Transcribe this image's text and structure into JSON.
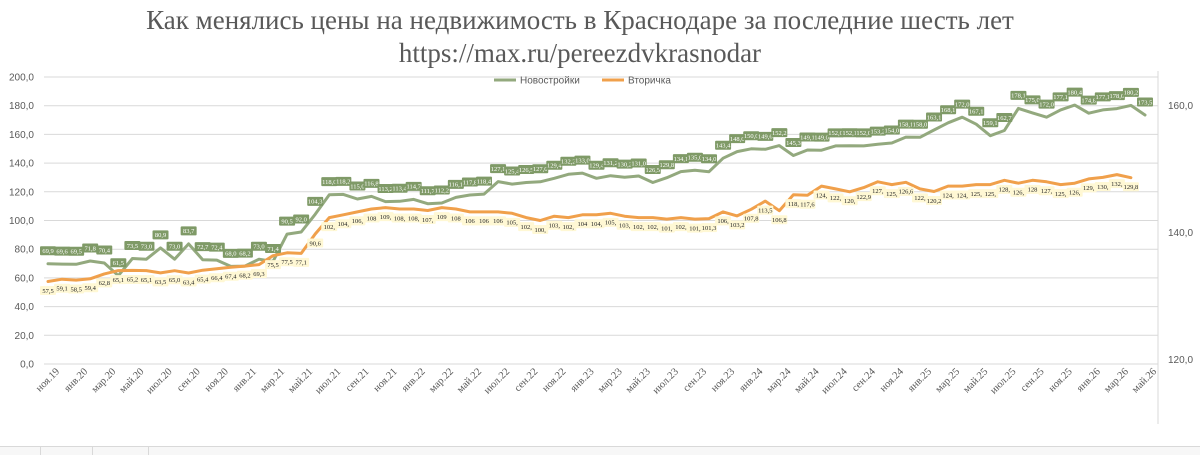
{
  "title": {
    "line1": "Как менялись цены на недвижимость в Краснодаре за последние шесть лет",
    "line2": "https://max.ru/pereezdvkrasnodar"
  },
  "chart_data": {
    "type": "line",
    "title": "Как менялись цены на недвижимость в Краснодаре за последние шесть лет",
    "subtitle": "https://max.ru/pereezdvkrasnodar",
    "legend_position": "top",
    "grid": true,
    "y_left": {
      "min": 0,
      "max": 200,
      "step": 20,
      "ticks": [
        "0,0",
        "20,0",
        "40,0",
        "60,0",
        "80,0",
        "100,0",
        "120,0",
        "140,0",
        "160,0",
        "180,0",
        "200,0"
      ]
    },
    "y_right": {
      "min": 110,
      "max": 170,
      "ticks": [
        "120,0",
        "140,0",
        "160,0"
      ]
    },
    "x_tick_labels": [
      "ноя.19",
      "янв.20",
      "мар.20",
      "май.20",
      "июл.20",
      "сен.20",
      "ноя.20",
      "янв.21",
      "мар.21",
      "май.21",
      "июл.21",
      "сен.21",
      "ноя.21",
      "янв.22",
      "мар.22",
      "май.22",
      "июл.22",
      "сен.22",
      "ноя.22",
      "янв.23",
      "мар.23",
      "май.23",
      "июл.23",
      "сен.23",
      "ноя.23",
      "янв.24",
      "мар.24",
      "май.24",
      "июл.24",
      "сен.24",
      "ноя.24",
      "янв.25",
      "мар.25",
      "май.25",
      "июл.25",
      "сен.25",
      "ноя.25",
      "янв.26",
      "мар.26",
      "май.26"
    ],
    "series": [
      {
        "name": "Новостройки",
        "color": "#93a97e",
        "values": [
          69.9,
          69.6,
          69.5,
          71.8,
          70.4,
          61.5,
          73.5,
          73.0,
          80.9,
          73.0,
          83.7,
          72.7,
          72.4,
          68.0,
          68.2,
          73.0,
          71.4,
          90.5,
          92.0,
          104.3,
          118.0,
          118.2,
          115.0,
          116.8,
          113.2,
          113.4,
          114.7,
          111.7,
          112.2,
          116.1,
          117.8,
          118.4,
          127.1,
          125.4,
          126.5,
          127.0,
          129.4,
          132.2,
          133.0,
          129.4,
          131.2,
          130.2,
          131.0,
          126.5,
          129.8,
          134.1,
          135.0,
          134.0,
          143.4,
          148.0,
          150.0,
          149.6,
          152.2,
          145.3,
          149.1,
          149.0,
          152.0,
          152.1,
          152.0,
          153.2,
          154.0,
          158.1,
          158.0,
          163.1,
          168.1,
          172.0,
          167.1,
          159.1,
          162.7,
          178.1,
          175.0,
          172.0,
          177.1,
          180.4,
          174.8,
          177.1,
          178.0,
          180.2,
          173.5
        ],
        "labels": [
          "69,9",
          "69,6",
          "69,5",
          "71,8",
          "70,4",
          "61,5",
          "73,5",
          "73,0",
          "80,9",
          "73,0",
          "83,7",
          "72,7",
          "72,4",
          "68,0",
          "68,2",
          "73,0",
          "71,4",
          "90,5",
          "92,0",
          "104,3",
          "118,0",
          "118,2",
          "115,0",
          "116,8",
          "113,2",
          "113,4",
          "114,7",
          "111,7",
          "112,2",
          "116,1",
          "117,8",
          "118,4",
          "127,1",
          "125,4",
          "126,5",
          "127,0",
          "129,4",
          "132,2",
          "133,0",
          "129,4",
          "131,2",
          "130,2",
          "131,0",
          "126,5",
          "129,8",
          "134,1",
          "135,0",
          "134,0",
          "143,4",
          "148,0",
          "150,0",
          "149,6",
          "152,2",
          "145,3",
          "149,1",
          "149,0",
          "152,0",
          "152,1",
          "152,0",
          "153,2",
          "154,0",
          "158,1",
          "158,0",
          "163,1",
          "168,1",
          "172,0",
          "167,1",
          "159,1",
          "162,7",
          "178,1",
          "175,0",
          "172,0",
          "177,1",
          "180,4",
          "174,8",
          "177,1",
          "178,0",
          "180,2",
          "173,5"
        ]
      },
      {
        "name": "Вторичка",
        "color": "#f0a04b",
        "values": [
          57.5,
          59.1,
          58.5,
          59.4,
          62.8,
          65.1,
          65.2,
          65.1,
          63.5,
          65.0,
          63.4,
          65.4,
          66.4,
          67.4,
          68.2,
          69.3,
          75.5,
          77.5,
          77.1,
          90.6,
          102.0,
          104.0,
          106.0,
          108.0,
          109.0,
          108.0,
          108.0,
          107.0,
          109.0,
          108.0,
          106.0,
          106.0,
          106.0,
          105.0,
          102.0,
          100.0,
          103.0,
          102.0,
          104.0,
          104.0,
          105.0,
          103.0,
          102.0,
          102.0,
          101.0,
          102.0,
          101.0,
          101.3,
          106.0,
          103.2,
          107.8,
          113.5,
          106.8,
          118.0,
          117.6,
          124.0,
          122.0,
          120.0,
          122.9,
          127.0,
          125.0,
          126.6,
          122.0,
          120.2,
          124.0,
          124.0,
          125.0,
          125.0,
          128.0,
          126.0,
          128.0,
          127.0,
          125.0,
          126.0,
          129.0,
          130.0,
          132.0,
          129.8
        ],
        "labels": [
          "57,5",
          "59,1",
          "58,5",
          "59,4",
          "62,8",
          "65,1",
          "65,2",
          "65,1",
          "63,5",
          "65,0",
          "63,4",
          "65,4",
          "66,4",
          "67,4",
          "68,2",
          "69,3",
          "75,5",
          "77,5",
          "77,1",
          "90,6",
          "102,",
          "104,",
          "106,",
          "108",
          "109,",
          "108,",
          "108,",
          "107,",
          "109",
          "108",
          "106",
          "106",
          "106",
          "105,",
          "102,",
          "100,",
          "103,",
          "102,",
          "104",
          "104,",
          "105,",
          "103,",
          "102,",
          "102,",
          "101,",
          "102,",
          "101,",
          "101,3",
          "106,",
          "103,2",
          "107,8",
          "113,5",
          "106,8",
          "118,",
          "117,6",
          "124,",
          "122,",
          "120,",
          "122,9",
          "127,",
          "125,",
          "126,6",
          "122,",
          "120,2",
          "124,",
          "124,",
          "125,",
          "125,",
          "128,",
          "126,",
          "128",
          "127,",
          "125,",
          "126,",
          "129,",
          "130,",
          "132,",
          "129,8"
        ]
      }
    ]
  }
}
